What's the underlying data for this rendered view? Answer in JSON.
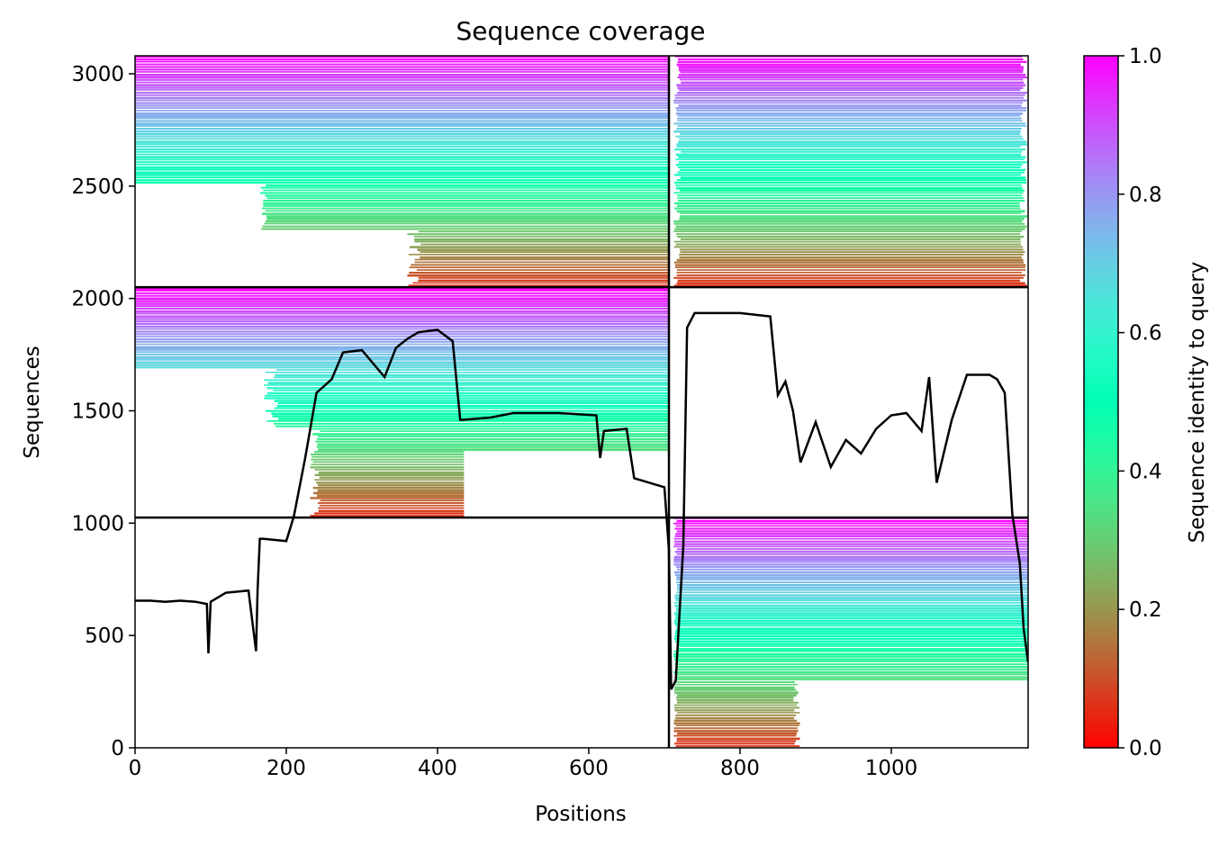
{
  "chart_data": {
    "type": "heatmap",
    "title": "Sequence coverage",
    "xlabel": "Positions",
    "ylabel": "Sequences",
    "xlim": [
      0,
      1181
    ],
    "ylim": [
      0,
      3080
    ],
    "x_ticks": [
      0,
      200,
      400,
      600,
      800,
      1000
    ],
    "y_ticks": [
      0,
      500,
      1000,
      1500,
      2000,
      2500,
      3000
    ],
    "colorbar": {
      "label": "Sequence identity to query",
      "range": [
        0.0,
        1.0
      ],
      "ticks": [
        0.0,
        0.2,
        0.4,
        0.6,
        0.8,
        1.0
      ],
      "tick_labels": [
        "0.0",
        "0.2",
        "0.4",
        "0.6",
        "0.8",
        "1.0"
      ],
      "colormap": "rainbow (red to violet)"
    },
    "chain_boundaries": {
      "x": [
        706
      ],
      "y": [
        1025,
        2050
      ]
    },
    "blocks": [
      {
        "chain_x": "A",
        "chain_y": "pair",
        "x": [
          0,
          706
        ],
        "y": [
          2050,
          3080
        ],
        "fill": "mostly covered"
      },
      {
        "chain_x": "B",
        "chain_y": "pair",
        "x": [
          706,
          1181
        ],
        "y": [
          2050,
          3080
        ],
        "fill": "mostly covered"
      },
      {
        "chain_x": "A",
        "chain_y": "A",
        "x": [
          0,
          706
        ],
        "y": [
          1025,
          2050
        ],
        "fill": "covered"
      },
      {
        "chain_x": "B",
        "chain_y": "A",
        "x": [
          706,
          1181
        ],
        "y": [
          1025,
          2050
        ],
        "fill": "empty"
      },
      {
        "chain_x": "A",
        "chain_y": "B",
        "x": [
          0,
          706
        ],
        "y": [
          0,
          1025
        ],
        "fill": "empty"
      },
      {
        "chain_x": "B",
        "chain_y": "B",
        "x": [
          706,
          1181
        ],
        "y": [
          0,
          1025
        ],
        "fill": "covered"
      }
    ],
    "coverage_line": {
      "name": "",
      "color": "#000000",
      "x": [
        0,
        20,
        40,
        60,
        80,
        95,
        97,
        100,
        120,
        150,
        160,
        162,
        165,
        170,
        200,
        210,
        225,
        240,
        260,
        275,
        300,
        330,
        345,
        360,
        375,
        400,
        420,
        430,
        434,
        470,
        500,
        560,
        610,
        615,
        620,
        650,
        660,
        700,
        706,
        709,
        715,
        725,
        730,
        740,
        760,
        800,
        840,
        850,
        860,
        870,
        880,
        900,
        920,
        940,
        960,
        980,
        1000,
        1020,
        1040,
        1050,
        1060,
        1080,
        1100,
        1120,
        1130,
        1140,
        1150,
        1160,
        1170,
        1175,
        1181
      ],
      "y": [
        655,
        655,
        650,
        655,
        650,
        640,
        420,
        650,
        690,
        700,
        430,
        700,
        930,
        930,
        920,
        1030,
        1290,
        1580,
        1640,
        1760,
        1770,
        1650,
        1780,
        1820,
        1850,
        1860,
        1810,
        1460,
        1460,
        1470,
        1490,
        1490,
        1480,
        1290,
        1410,
        1420,
        1200,
        1160,
        880,
        260,
        300,
        900,
        1870,
        1935,
        1935,
        1935,
        1920,
        1570,
        1630,
        1500,
        1270,
        1450,
        1250,
        1370,
        1310,
        1420,
        1480,
        1490,
        1410,
        1650,
        1180,
        1460,
        1660,
        1660,
        1660,
        1640,
        1580,
        1040,
        820,
        530,
        380
      ]
    }
  }
}
